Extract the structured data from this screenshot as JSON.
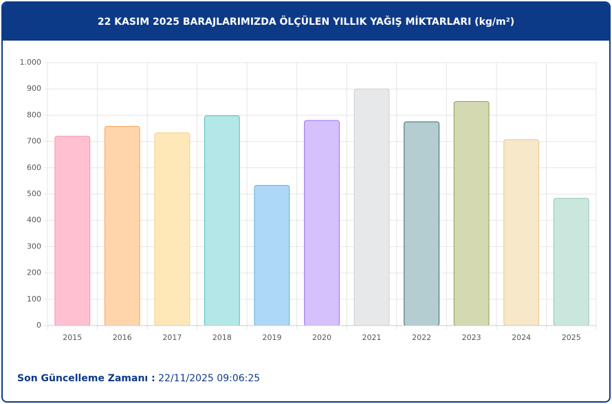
{
  "chart_data": {
    "type": "bar",
    "title": "22 KASIM 2025 BARAJLARIMIZDA ÖLÇÜLEN YILLIK YAĞIŞ MİKTARLARI (kg/m²)",
    "categories": [
      "2015",
      "2016",
      "2017",
      "2018",
      "2019",
      "2020",
      "2021",
      "2022",
      "2023",
      "2024",
      "2025"
    ],
    "values": [
      720,
      758,
      733,
      798,
      533,
      780,
      900,
      775,
      852,
      707,
      484
    ],
    "colors": [
      "#ffc1d1",
      "#ffd5ab",
      "#ffe8b8",
      "#b4e7e7",
      "#aed8f7",
      "#d5c1fb",
      "#e7e8ea",
      "#b4cdd1",
      "#d4d9b1",
      "#f7e8c9",
      "#c9e7dd"
    ],
    "border_colors": [
      "#f58fab",
      "#f4a860",
      "#f5cf7c",
      "#4fbfbf",
      "#5aaee8",
      "#9a6ff0",
      "#cbcdd1",
      "#2f6b71",
      "#8e9c52",
      "#e6c88a",
      "#90c8b5"
    ],
    "ylim": [
      0,
      1000
    ],
    "yticks": [
      0,
      100,
      200,
      300,
      400,
      500,
      600,
      700,
      800,
      900,
      {
        "value": 1000,
        "label": "1.000"
      }
    ],
    "grid": true,
    "footer": {
      "label": "Son Güncelleme Zamanı :",
      "time": "22/11/2025 09:06:25"
    }
  }
}
